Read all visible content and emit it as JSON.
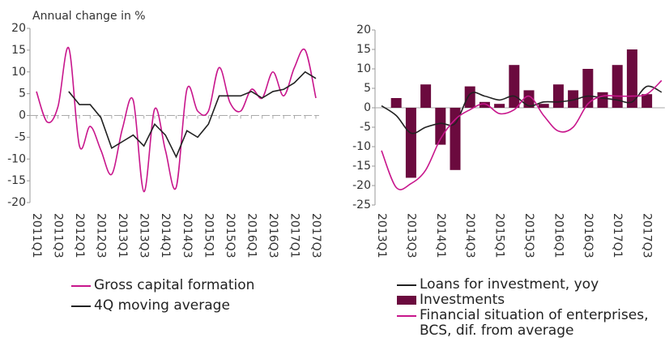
{
  "chart_data": [
    {
      "type": "line",
      "y_label": "Annual change in %",
      "categories": [
        "2011Q1",
        null,
        "2011Q3",
        null,
        "2012Q1",
        null,
        "2012Q3",
        null,
        "2013Q1",
        null,
        "2013Q3",
        null,
        "2014Q1",
        null,
        "2014Q3",
        null,
        "2015Q1",
        null,
        "2015Q3",
        null,
        "2016Q1",
        null,
        "2016Q3",
        null,
        "2017Q1",
        null,
        "2017Q3"
      ],
      "ylim": [
        -20,
        20
      ],
      "yticks": [
        20,
        15,
        10,
        5,
        0,
        -5,
        -10,
        -15,
        -20
      ],
      "grid": false,
      "series": [
        {
          "name": "Gross capital formation",
          "type": "line",
          "color": "#c8168c",
          "smooth": true,
          "values": [
            5.5,
            -1.5,
            2,
            15.5,
            -7,
            -2.5,
            -8,
            -13.5,
            -3,
            3.5,
            -17.5,
            1.5,
            -8,
            -16.5,
            6,
            1,
            1,
            11,
            3,
            1,
            6,
            4,
            10,
            4.5,
            11,
            15,
            4
          ]
        },
        {
          "name": "4Q moving average",
          "type": "line",
          "color": "#222222",
          "smooth": false,
          "values": [
            null,
            null,
            null,
            5.5,
            2.5,
            2.5,
            -0.5,
            -7.5,
            -6,
            -4.5,
            -7,
            -2,
            -4.5,
            -9.5,
            -3.5,
            -5,
            -2,
            4.5,
            4.5,
            4.5,
            5.5,
            4,
            5.5,
            6,
            7.5,
            10,
            8.5
          ]
        }
      ]
    },
    {
      "type": "combo",
      "categories": [
        "2013Q1",
        null,
        "2013Q3",
        null,
        "2014Q1",
        null,
        "2014Q3",
        null,
        "2015Q1",
        null,
        "2015Q3",
        null,
        "2016Q1",
        null,
        "2016Q3",
        null,
        "2017Q1",
        null,
        "2017Q3",
        null
      ],
      "ylim": [
        -25,
        20
      ],
      "yticks": [
        20,
        15,
        10,
        5,
        0,
        -5,
        -10,
        -15,
        -20,
        -25
      ],
      "grid": false,
      "series": [
        {
          "name": "Loans for investment, yoy",
          "type": "line",
          "color": "#222222",
          "smooth": true,
          "values": [
            0.5,
            -2,
            -6.5,
            -5,
            -4,
            -4,
            3.5,
            3,
            2,
            3,
            0.5,
            1.5,
            1.5,
            2,
            3,
            2.5,
            2,
            1.5,
            5.5,
            4
          ]
        },
        {
          "name": "Investments",
          "type": "bar",
          "color": "#6b0a3e",
          "values": [
            null,
            2.5,
            -18,
            6,
            -9.5,
            -16,
            5.5,
            1.5,
            1,
            11,
            4.5,
            1,
            6,
            4.5,
            10,
            4,
            11,
            15,
            3.5,
            null
          ]
        },
        {
          "name": "Financial situation of enterprises, BCS, dif. from average",
          "type": "line",
          "color": "#c8168c",
          "smooth": true,
          "values": [
            -11,
            -20.5,
            -19.5,
            -16,
            -8,
            -3,
            -0.5,
            1,
            -1.5,
            -0.5,
            3,
            -2,
            -6,
            -5,
            1,
            3,
            3,
            3,
            3.5,
            7
          ]
        }
      ]
    }
  ]
}
